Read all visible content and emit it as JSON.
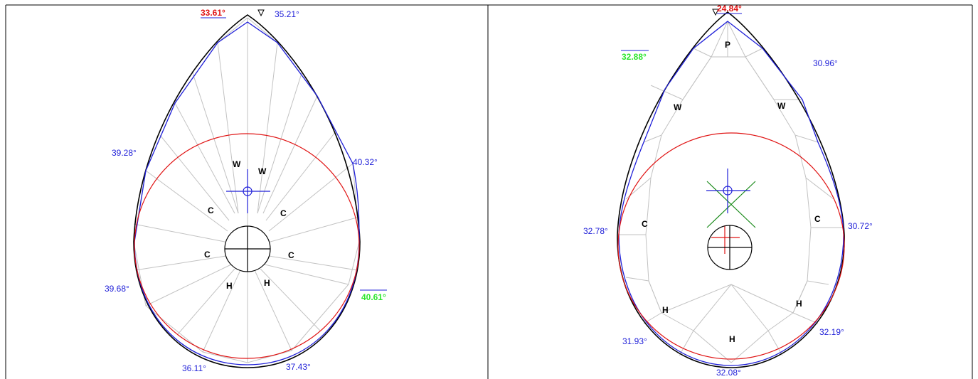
{
  "panels": [
    {
      "id": "left",
      "angles": {
        "top_left_red": "33.61°",
        "top_right": "35.21°",
        "upper_left": "39.28°",
        "upper_right": "40.32°",
        "lower_left": "39.68°",
        "lower_right_green": "40.61°",
        "bottom_left": "36.11°",
        "bottom_right": "37.43°"
      },
      "facets": {
        "w_left": "W",
        "w_right": "W",
        "c_upper_left": "C",
        "c_upper_right": "C",
        "c_lower_left": "C",
        "c_lower_right": "C",
        "h_left": "H",
        "h_right": "H"
      }
    },
    {
      "id": "right",
      "angles": {
        "top_red": "24.84°",
        "upper_left_green": "32.88°",
        "upper_right": "30.96°",
        "mid_left": "32.78°",
        "mid_right": "30.72°",
        "bottom_left": "31.93°",
        "bottom_right": "32.19°",
        "bottom": "32.08°"
      },
      "facets": {
        "p_top": "P",
        "w_left": "W",
        "w_right": "W",
        "c_left": "C",
        "c_right": "C",
        "h_left": "H",
        "h_right": "H",
        "h_bottom": "H"
      }
    }
  ],
  "colors": {
    "outline": "#000000",
    "blue": "#1f1fd8",
    "red": "#e01414",
    "green": "#2ee62e",
    "facet": "#c2c2c2"
  }
}
